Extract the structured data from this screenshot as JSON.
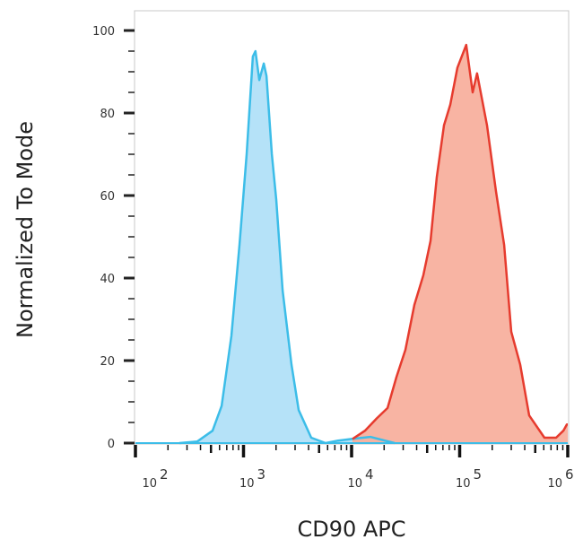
{
  "chart_data": {
    "type": "area",
    "title": "",
    "xlabel": "CD90 APC",
    "ylabel": "Normalized To Mode",
    "xscale": "log",
    "xlim": [
      100,
      1000000
    ],
    "ylim": [
      0,
      100
    ],
    "xticks": [
      {
        "value": 100,
        "base": "10",
        "exp": "2"
      },
      {
        "value": 1000,
        "base": "10",
        "exp": "3"
      },
      {
        "value": 10000,
        "base": "10",
        "exp": "4"
      },
      {
        "value": 100000,
        "base": "10",
        "exp": "5"
      },
      {
        "value": 1000000,
        "base": "10",
        "exp": "6"
      }
    ],
    "yticks": [
      "0",
      "20",
      "40",
      "60",
      "80",
      "100"
    ],
    "grid": false,
    "series": [
      {
        "color": "#3cbde8",
        "fill": "#b5e2f8",
        "x": [
          255,
          374,
          517,
          627,
          773,
          918,
          1070,
          1220,
          1290,
          1400,
          1540,
          1630,
          1830,
          2010,
          2300,
          2780,
          3240,
          4230,
          5750,
          7510,
          10000,
          14900,
          25000
        ],
        "y": [
          0,
          0.4,
          3,
          9,
          26,
          48,
          70,
          93.7,
          95,
          88,
          92,
          89,
          70,
          59,
          37,
          19,
          8,
          1.3,
          0,
          0.6,
          1,
          1.5,
          0
        ]
      },
      {
        "color": "#e63b2e",
        "fill": "#f8b09e",
        "x": [
          10200,
          13300,
          17100,
          21500,
          26000,
          31500,
          38100,
          46100,
          53700,
          61400,
          71600,
          81800,
          95300,
          115000,
          132000,
          145000,
          179000,
          217000,
          258000,
          300000,
          363000,
          440000,
          608000,
          780000,
          910000,
          982000,
          1000000
        ],
        "y": [
          1,
          3,
          6,
          8.5,
          16,
          22.6,
          33.5,
          40.7,
          49,
          64.5,
          77,
          82,
          91,
          96.5,
          85,
          89.6,
          77,
          61,
          48,
          27,
          19,
          6.7,
          1.3,
          1.3,
          3,
          4.5,
          4.5
        ]
      }
    ]
  }
}
